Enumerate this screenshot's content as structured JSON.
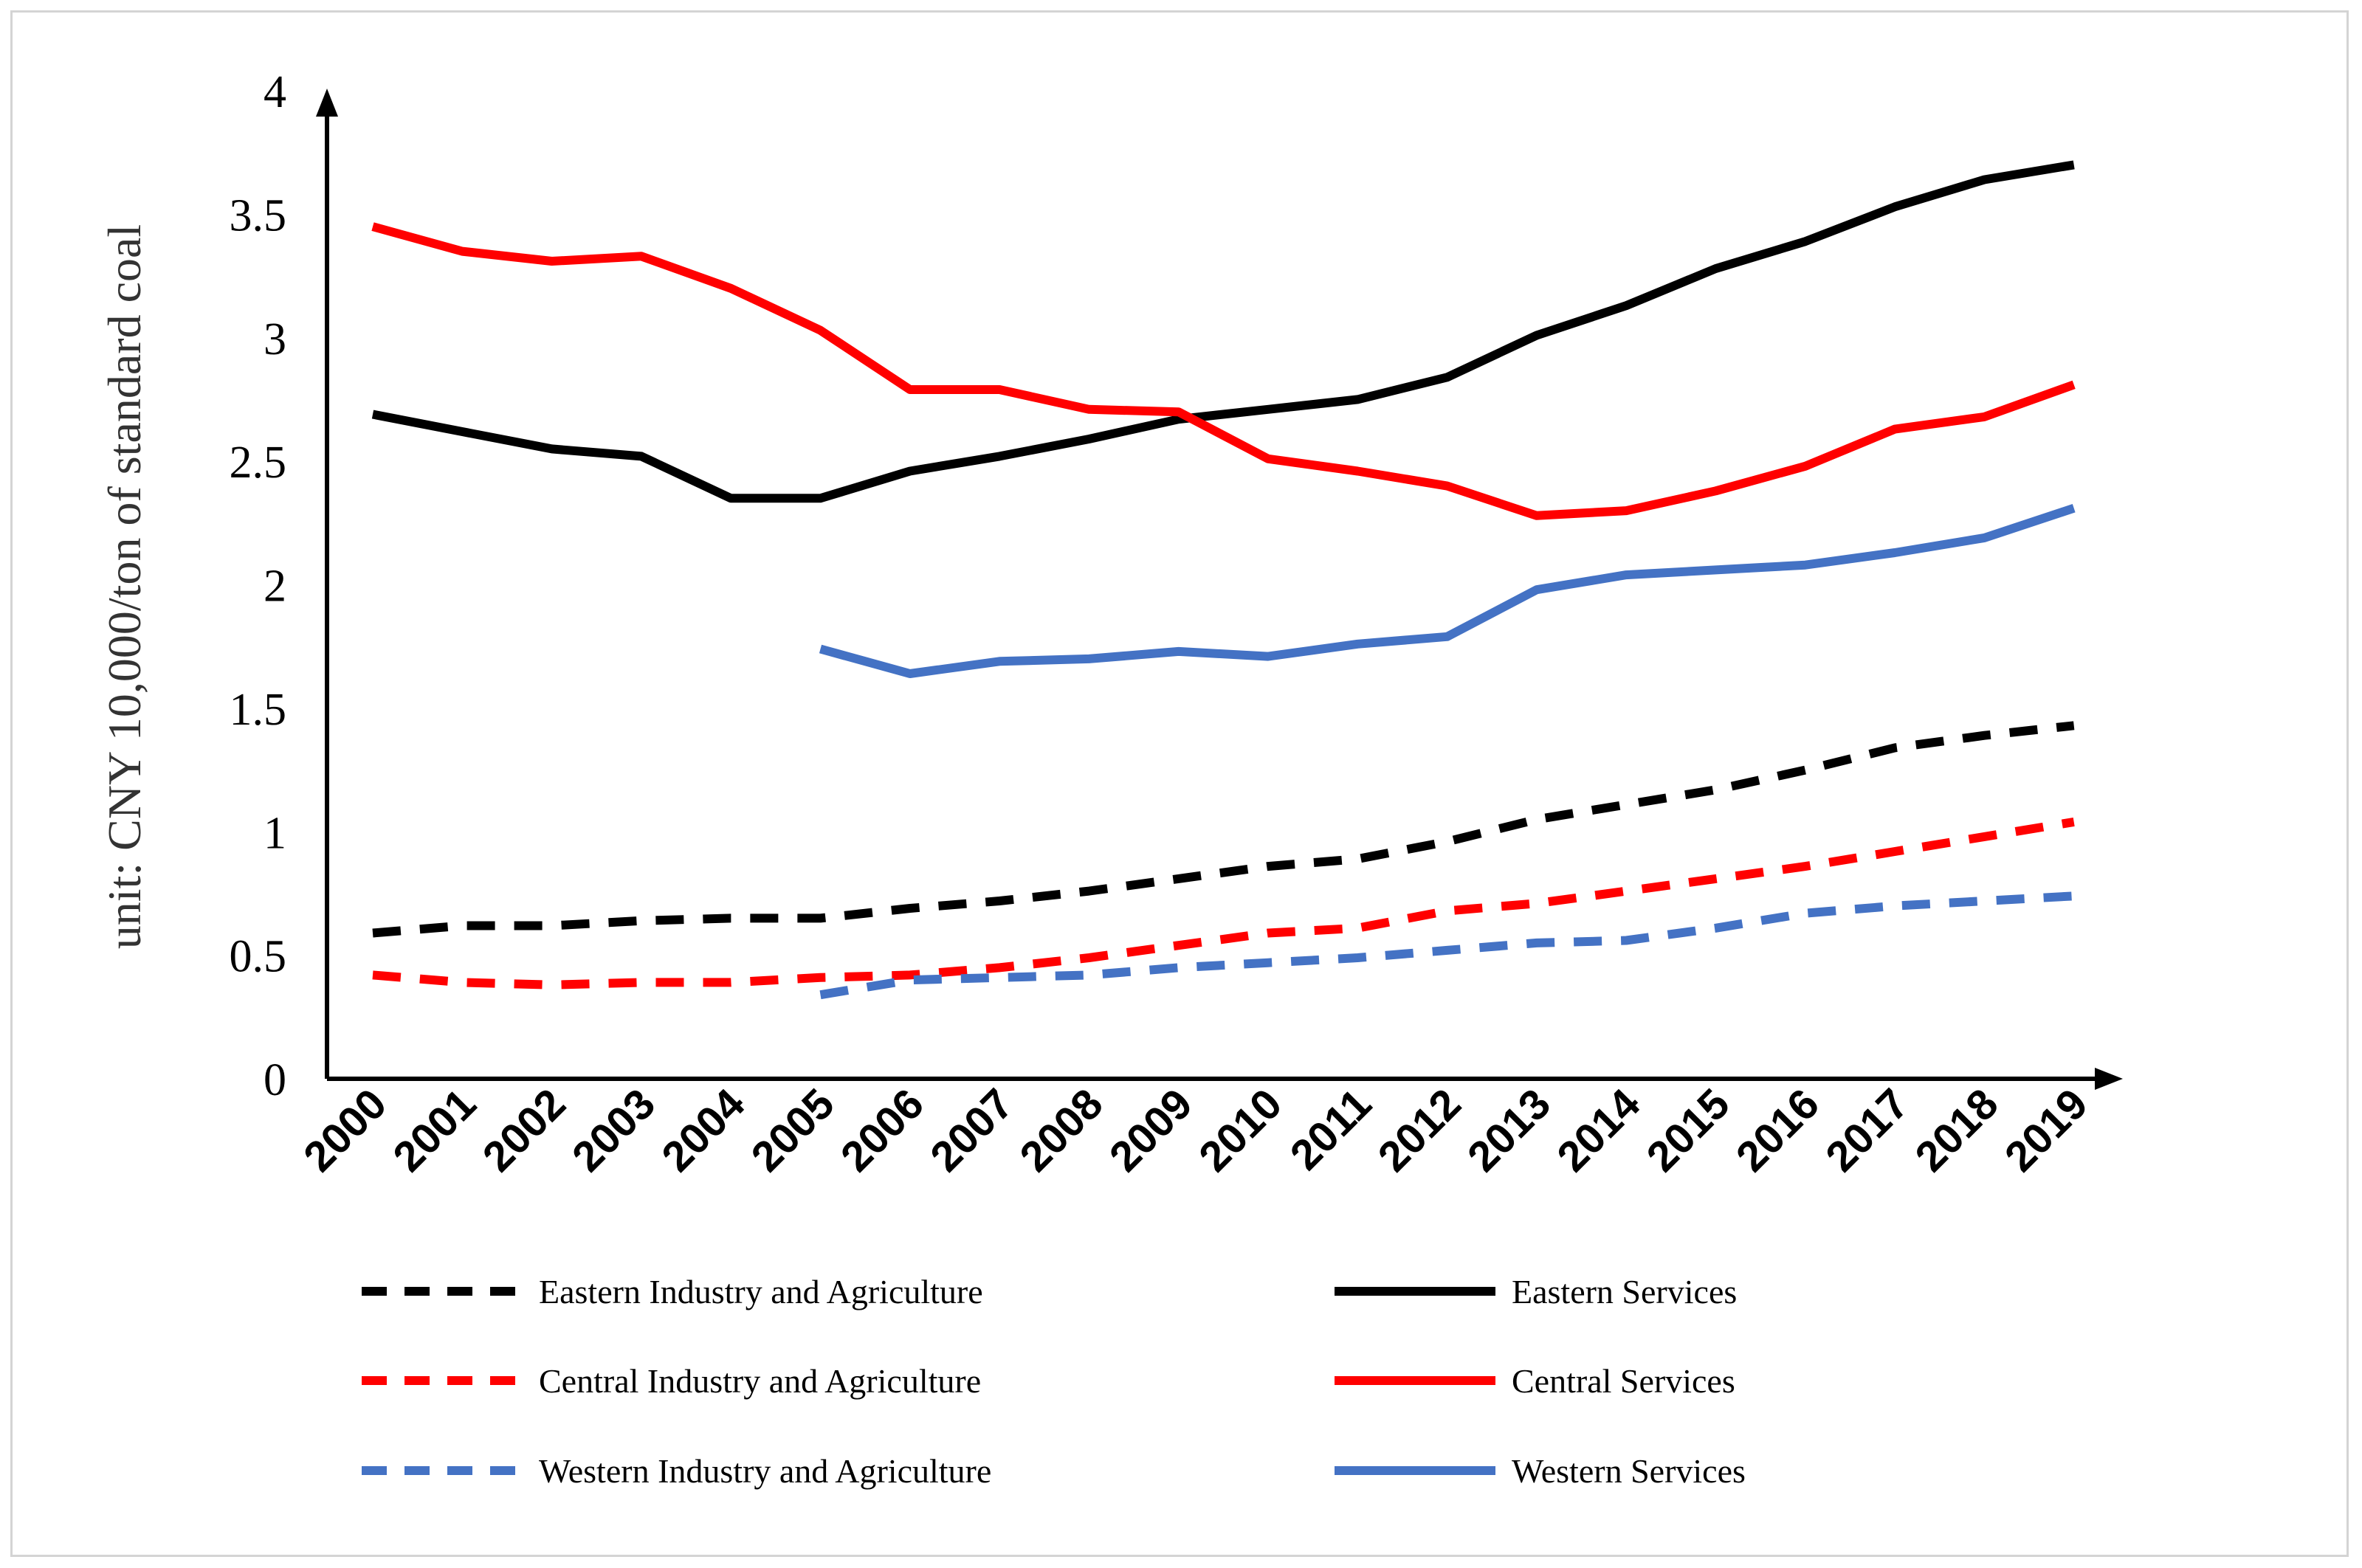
{
  "chart_data": {
    "type": "line",
    "ylabel": "unit: CNY 10,000/ton of standard coal",
    "xlabel": "",
    "ylim": [
      0,
      4
    ],
    "y_ticks": [
      "0",
      "0.5",
      "1",
      "1.5",
      "2",
      "2.5",
      "3",
      "3.5",
      "4"
    ],
    "y_tick_values": [
      0,
      0.5,
      1,
      1.5,
      2,
      2.5,
      3,
      3.5,
      4
    ],
    "categories": [
      "2000",
      "2001",
      "2002",
      "2003",
      "2004",
      "2005",
      "2006",
      "2007",
      "2008",
      "2009",
      "2010",
      "2011",
      "2012",
      "2013",
      "2014",
      "2015",
      "2016",
      "2017",
      "2018",
      "2019"
    ],
    "legend_position": "bottom",
    "series": [
      {
        "name": "Eastern Industry and Agriculture",
        "color": "#000000",
        "dashed": true,
        "values": [
          0.59,
          0.62,
          0.62,
          0.64,
          0.65,
          0.65,
          0.69,
          0.72,
          0.76,
          0.81,
          0.86,
          0.89,
          0.96,
          1.05,
          1.11,
          1.17,
          1.25,
          1.34,
          1.39,
          1.43
        ]
      },
      {
        "name": "Eastern Services",
        "color": "#000000",
        "dashed": false,
        "values": [
          2.69,
          2.62,
          2.55,
          2.52,
          2.35,
          2.35,
          2.46,
          2.52,
          2.59,
          2.67,
          2.71,
          2.75,
          2.84,
          3.01,
          3.13,
          3.28,
          3.39,
          3.53,
          3.64,
          3.7
        ]
      },
      {
        "name": "Central Industry and Agriculture",
        "color": "#ff0000",
        "dashed": true,
        "values": [
          0.42,
          0.39,
          0.38,
          0.39,
          0.39,
          0.41,
          0.42,
          0.45,
          0.49,
          0.54,
          0.59,
          0.61,
          0.68,
          0.71,
          0.76,
          0.81,
          0.86,
          0.92,
          0.98,
          1.04
        ]
      },
      {
        "name": "Central Services",
        "color": "#ff0000",
        "dashed": false,
        "values": [
          3.45,
          3.35,
          3.31,
          3.33,
          3.2,
          3.03,
          2.79,
          2.79,
          2.71,
          2.7,
          2.51,
          2.46,
          2.4,
          2.28,
          2.3,
          2.38,
          2.48,
          2.63,
          2.68,
          2.81
        ]
      },
      {
        "name": "Western Industry and Agriculture",
        "color": "#4472c4",
        "dashed": true,
        "values": [
          null,
          null,
          null,
          null,
          null,
          0.34,
          0.4,
          0.41,
          0.42,
          0.45,
          0.47,
          0.49,
          0.52,
          0.55,
          0.56,
          0.61,
          0.67,
          0.7,
          0.72,
          0.74
        ]
      },
      {
        "name": "Western Services",
        "color": "#4472c4",
        "dashed": false,
        "values": [
          null,
          null,
          null,
          null,
          null,
          1.74,
          1.64,
          1.69,
          1.7,
          1.73,
          1.71,
          1.76,
          1.79,
          1.98,
          2.04,
          2.06,
          2.08,
          2.13,
          2.19,
          2.31
        ]
      }
    ]
  }
}
